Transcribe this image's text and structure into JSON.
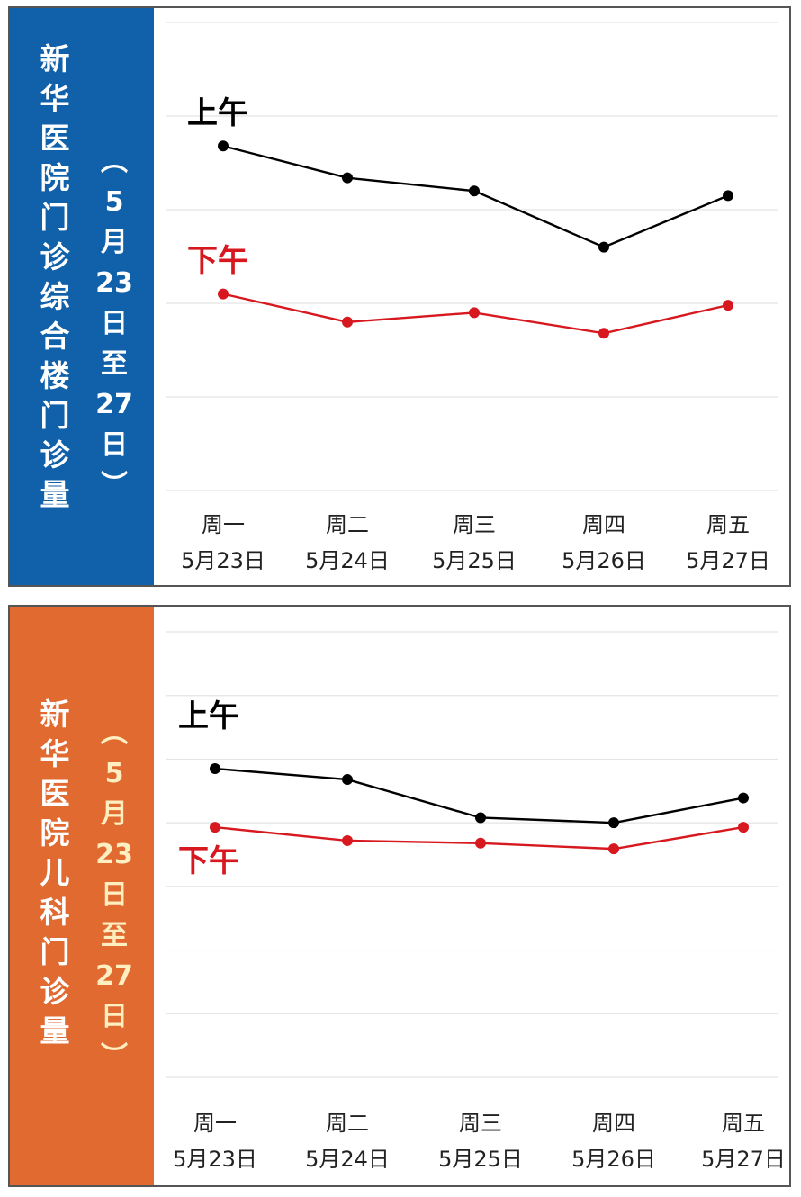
{
  "chart_data": [
    {
      "type": "line",
      "title": "新华医院门诊综合楼门诊量",
      "subtitle": "（5月23日至27日）",
      "colors": {
        "side": "#1060aa",
        "subtitle": "#ffffff",
        "axis_band": "#e8eef5"
      },
      "categories": [
        {
          "day": "周一",
          "date": "5月23日"
        },
        {
          "day": "周二",
          "date": "5月24日"
        },
        {
          "day": "周三",
          "date": "5月25日"
        },
        {
          "day": "周四",
          "date": "5月26日"
        },
        {
          "day": "周五",
          "date": "5月27日"
        }
      ],
      "series": [
        {
          "name": "上午",
          "color": "#000000",
          "values": [
            3.68,
            3.34,
            3.2,
            2.6,
            3.15
          ]
        },
        {
          "name": "下午",
          "color": "#d8181f",
          "values": [
            2.1,
            1.8,
            1.9,
            1.68,
            1.98
          ]
        }
      ],
      "ylim": [
        0,
        5
      ],
      "grid": true
    },
    {
      "type": "line",
      "title": "新华医院儿科门诊量",
      "subtitle": "（5月23日至27日）",
      "colors": {
        "side": "#e06a30",
        "subtitle": "#ffeec0",
        "axis_band": "#fdf5ee"
      },
      "categories": [
        {
          "day": "周一",
          "date": "5月23日"
        },
        {
          "day": "周二",
          "date": "5月24日"
        },
        {
          "day": "周三",
          "date": "5月25日"
        },
        {
          "day": "周四",
          "date": "5月26日"
        },
        {
          "day": "周五",
          "date": "5月27日"
        }
      ],
      "series": [
        {
          "name": "上午",
          "color": "#000000",
          "values": [
            4.85,
            4.68,
            4.08,
            4.0,
            4.39
          ]
        },
        {
          "name": "下午",
          "color": "#d8181f",
          "values": [
            3.93,
            3.72,
            3.68,
            3.59,
            3.93
          ]
        }
      ],
      "ylim": [
        0,
        7
      ],
      "grid": true
    }
  ]
}
